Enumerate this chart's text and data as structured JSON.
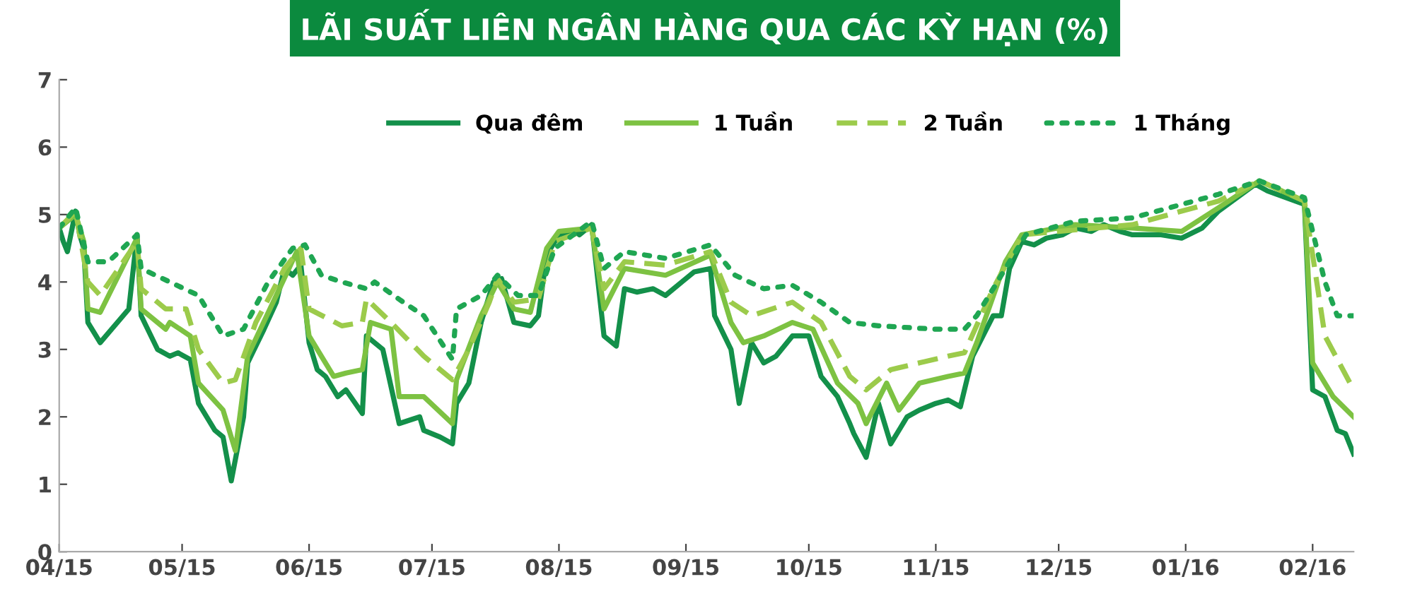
{
  "chart_data": {
    "type": "line",
    "title": "LÃI SUẤT LIÊN NGÂN HÀNG QUA CÁC KỲ HẠN (%)",
    "ylim": [
      0,
      7
    ],
    "yticks": [
      0,
      1,
      2,
      3,
      4,
      5,
      6,
      7
    ],
    "xlim": [
      "2015-04-01",
      "2016-02-11"
    ],
    "xticks": [
      {
        "value": "2015-04-01",
        "label": "04/15"
      },
      {
        "value": "2015-05-01",
        "label": "05/15"
      },
      {
        "value": "2015-06-01",
        "label": "06/15"
      },
      {
        "value": "2015-07-01",
        "label": "07/15"
      },
      {
        "value": "2015-08-01",
        "label": "08/15"
      },
      {
        "value": "2015-09-01",
        "label": "09/15"
      },
      {
        "value": "2015-10-01",
        "label": "10/15"
      },
      {
        "value": "2015-11-01",
        "label": "11/15"
      },
      {
        "value": "2015-12-01",
        "label": "12/15"
      },
      {
        "value": "2016-01-01",
        "label": "01/16"
      },
      {
        "value": "2016-02-01",
        "label": "02/16"
      }
    ],
    "grid": false,
    "legend": "top",
    "marker": "none",
    "series": [
      {
        "name": "Qua đêm",
        "color": "#13904a",
        "line_style": "solid",
        "x": [
          "2015-04-01",
          "2015-04-02",
          "2015-04-03",
          "2015-04-05",
          "2015-04-06",
          "2015-04-07",
          "2015-04-08",
          "2015-04-11",
          "2015-04-18",
          "2015-04-20",
          "2015-04-21",
          "2015-04-25",
          "2015-04-28",
          "2015-04-30",
          "2015-05-03",
          "2015-05-05",
          "2015-05-09",
          "2015-05-11",
          "2015-05-13",
          "2015-05-16",
          "2015-05-17",
          "2015-05-21",
          "2015-05-24",
          "2015-05-26",
          "2015-05-28",
          "2015-05-30",
          "2015-06-01",
          "2015-06-03",
          "2015-06-05",
          "2015-06-08",
          "2015-06-10",
          "2015-06-14",
          "2015-06-15",
          "2015-06-19",
          "2015-06-23",
          "2015-06-28",
          "2015-06-29",
          "2015-07-03",
          "2015-07-06",
          "2015-07-07",
          "2015-07-10",
          "2015-07-13",
          "2015-07-16",
          "2015-07-18",
          "2015-07-21",
          "2015-07-25",
          "2015-07-27",
          "2015-07-29",
          "2015-08-01",
          "2015-08-05",
          "2015-08-06",
          "2015-08-09",
          "2015-08-12",
          "2015-08-15",
          "2015-08-17",
          "2015-08-20",
          "2015-08-24",
          "2015-08-27",
          "2015-08-31",
          "2015-09-03",
          "2015-09-07",
          "2015-09-08",
          "2015-09-12",
          "2015-09-14",
          "2015-09-17",
          "2015-09-20",
          "2015-09-23",
          "2015-09-27",
          "2015-10-01",
          "2015-10-04",
          "2015-10-08",
          "2015-10-11",
          "2015-10-12",
          "2015-10-15",
          "2015-10-18",
          "2015-10-21",
          "2015-10-25",
          "2015-10-28",
          "2015-11-01",
          "2015-11-04",
          "2015-11-07",
          "2015-11-10",
          "2015-11-15",
          "2015-11-17",
          "2015-11-19",
          "2015-11-22",
          "2015-11-25",
          "2015-11-28",
          "2015-12-02",
          "2015-12-05",
          "2015-12-09",
          "2015-12-12",
          "2015-12-16",
          "2015-12-19",
          "2015-12-26",
          "2015-12-31",
          "2016-01-05",
          "2016-01-09",
          "2016-01-18",
          "2016-01-21",
          "2016-01-30",
          "2016-02-01",
          "2016-02-04",
          "2016-02-07",
          "2016-02-09",
          "2016-02-11"
        ],
        "values": [
          4.8,
          4.6,
          4.45,
          5.05,
          4.7,
          4.5,
          3.4,
          3.1,
          3.6,
          4.7,
          3.5,
          3.0,
          2.9,
          2.95,
          2.85,
          2.2,
          1.8,
          1.7,
          1.05,
          2.0,
          2.8,
          3.3,
          3.7,
          4.2,
          4.1,
          4.25,
          3.1,
          2.7,
          2.6,
          2.3,
          2.4,
          2.05,
          3.2,
          3.0,
          1.9,
          2.0,
          1.8,
          1.7,
          1.6,
          2.2,
          2.5,
          3.4,
          4.0,
          4.05,
          3.4,
          3.35,
          3.5,
          4.4,
          4.7,
          4.75,
          4.7,
          4.85,
          3.2,
          3.05,
          3.9,
          3.85,
          3.9,
          3.8,
          4.0,
          4.15,
          4.2,
          3.5,
          3.0,
          2.2,
          3.1,
          2.8,
          2.9,
          3.2,
          3.2,
          2.6,
          2.3,
          1.9,
          1.75,
          1.4,
          2.2,
          1.6,
          2.0,
          2.1,
          2.2,
          2.25,
          2.15,
          2.9,
          3.5,
          3.5,
          4.2,
          4.6,
          4.55,
          4.65,
          4.7,
          4.8,
          4.75,
          4.85,
          4.75,
          4.7,
          4.7,
          4.65,
          4.8,
          5.05,
          5.45,
          5.35,
          5.15,
          2.4,
          2.3,
          1.8,
          1.75,
          1.45
        ]
      },
      {
        "name": "1 Tuần",
        "color": "#7dc242",
        "line_style": "solid",
        "x": [
          "2015-04-01",
          "2015-04-05",
          "2015-04-07",
          "2015-04-08",
          "2015-04-11",
          "2015-04-20",
          "2015-04-21",
          "2015-04-27",
          "2015-04-28",
          "2015-05-03",
          "2015-05-05",
          "2015-05-11",
          "2015-05-14",
          "2015-05-17",
          "2015-05-24",
          "2015-05-29",
          "2015-06-01",
          "2015-06-07",
          "2015-06-10",
          "2015-06-14",
          "2015-06-16",
          "2015-06-21",
          "2015-06-23",
          "2015-06-29",
          "2015-07-06",
          "2015-07-07",
          "2015-07-13",
          "2015-07-17",
          "2015-07-21",
          "2015-07-25",
          "2015-07-29",
          "2015-08-01",
          "2015-08-09",
          "2015-08-12",
          "2015-08-17",
          "2015-08-27",
          "2015-09-07",
          "2015-09-12",
          "2015-09-15",
          "2015-09-20",
          "2015-09-27",
          "2015-10-02",
          "2015-10-08",
          "2015-10-13",
          "2015-10-15",
          "2015-10-20",
          "2015-10-23",
          "2015-10-28",
          "2015-11-04",
          "2015-11-08",
          "2015-11-11",
          "2015-11-18",
          "2015-11-22",
          "2015-12-05",
          "2015-12-19",
          "2015-12-31",
          "2016-01-09",
          "2016-01-19",
          "2016-01-30",
          "2016-02-01",
          "2016-02-06",
          "2016-02-11"
        ],
        "values": [
          4.8,
          5.0,
          4.6,
          3.6,
          3.55,
          4.65,
          3.6,
          3.3,
          3.4,
          3.2,
          2.5,
          2.1,
          1.5,
          2.9,
          3.8,
          4.45,
          3.2,
          2.6,
          2.65,
          2.7,
          3.4,
          3.3,
          2.3,
          2.3,
          1.9,
          2.55,
          3.5,
          4.0,
          3.6,
          3.55,
          4.5,
          4.75,
          4.8,
          3.6,
          4.2,
          4.1,
          4.4,
          3.4,
          3.1,
          3.2,
          3.4,
          3.3,
          2.5,
          2.2,
          1.9,
          2.5,
          2.1,
          2.5,
          2.6,
          2.65,
          3.1,
          4.3,
          4.7,
          4.85,
          4.8,
          4.75,
          5.1,
          5.5,
          5.2,
          2.8,
          2.3,
          2.0
        ]
      },
      {
        "name": "2 Tuần",
        "color": "#9ccb4b",
        "line_style": "dashed",
        "x": [
          "2015-04-01",
          "2015-04-05",
          "2015-04-08",
          "2015-04-11",
          "2015-04-20",
          "2015-04-21",
          "2015-04-27",
          "2015-05-02",
          "2015-05-05",
          "2015-05-11",
          "2015-05-14",
          "2015-05-19",
          "2015-05-26",
          "2015-05-30",
          "2015-06-01",
          "2015-06-09",
          "2015-06-14",
          "2015-06-15",
          "2015-06-21",
          "2015-06-29",
          "2015-07-06",
          "2015-07-10",
          "2015-07-15",
          "2015-07-17",
          "2015-07-21",
          "2015-07-27",
          "2015-07-31",
          "2015-08-09",
          "2015-08-12",
          "2015-08-17",
          "2015-08-27",
          "2015-09-07",
          "2015-09-12",
          "2015-09-17",
          "2015-09-27",
          "2015-10-04",
          "2015-10-11",
          "2015-10-15",
          "2015-10-21",
          "2015-10-28",
          "2015-11-04",
          "2015-11-08",
          "2015-11-15",
          "2015-11-22",
          "2015-12-19",
          "2016-01-09",
          "2016-01-19",
          "2016-01-30",
          "2016-02-04",
          "2016-02-11"
        ],
        "values": [
          4.8,
          5.05,
          4.0,
          3.8,
          4.6,
          3.9,
          3.6,
          3.6,
          3.0,
          2.5,
          2.55,
          3.4,
          4.2,
          4.5,
          3.6,
          3.35,
          3.4,
          3.75,
          3.4,
          2.9,
          2.55,
          3.0,
          3.7,
          4.05,
          3.7,
          3.75,
          4.6,
          4.8,
          3.9,
          4.3,
          4.25,
          4.45,
          3.7,
          3.5,
          3.7,
          3.4,
          2.6,
          2.4,
          2.7,
          2.8,
          2.9,
          2.95,
          3.9,
          4.7,
          4.85,
          5.2,
          5.5,
          5.2,
          3.2,
          2.4
        ]
      },
      {
        "name": "1 Tháng",
        "color": "#1fa652",
        "line_style": "dotted",
        "x": [
          "2015-04-01",
          "2015-04-05",
          "2015-04-08",
          "2015-04-13",
          "2015-04-20",
          "2015-04-21",
          "2015-04-28",
          "2015-05-05",
          "2015-05-11",
          "2015-05-16",
          "2015-05-22",
          "2015-05-28",
          "2015-05-31",
          "2015-06-04",
          "2015-06-09",
          "2015-06-15",
          "2015-06-17",
          "2015-06-24",
          "2015-06-29",
          "2015-07-06",
          "2015-07-07",
          "2015-07-13",
          "2015-07-17",
          "2015-07-22",
          "2015-07-27",
          "2015-07-31",
          "2015-08-09",
          "2015-08-12",
          "2015-08-17",
          "2015-08-27",
          "2015-09-07",
          "2015-09-13",
          "2015-09-20",
          "2015-09-27",
          "2015-10-04",
          "2015-10-11",
          "2015-10-18",
          "2015-11-01",
          "2015-11-08",
          "2015-11-11",
          "2015-11-18",
          "2015-11-23",
          "2015-12-05",
          "2015-12-19",
          "2016-01-09",
          "2016-01-19",
          "2016-01-30",
          "2016-02-04",
          "2016-02-07",
          "2016-02-11"
        ],
        "values": [
          4.8,
          5.1,
          4.3,
          4.3,
          4.7,
          4.2,
          4.0,
          3.8,
          3.2,
          3.3,
          4.0,
          4.5,
          4.55,
          4.1,
          4.0,
          3.9,
          4.0,
          3.7,
          3.5,
          2.85,
          3.6,
          3.8,
          4.1,
          3.8,
          3.8,
          4.5,
          4.9,
          4.2,
          4.45,
          4.35,
          4.55,
          4.1,
          3.9,
          3.95,
          3.7,
          3.4,
          3.35,
          3.3,
          3.3,
          3.5,
          4.2,
          4.7,
          4.9,
          4.95,
          5.3,
          5.5,
          5.25,
          4.0,
          3.5,
          3.5
        ]
      }
    ]
  }
}
